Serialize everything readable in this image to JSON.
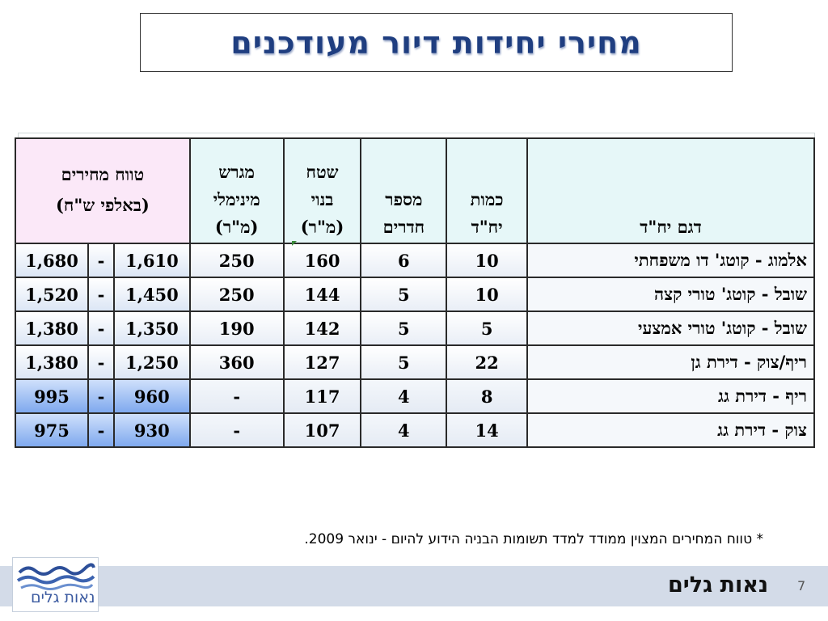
{
  "title": "מחירי יחידות דיור מעודכנים",
  "table": {
    "headers": {
      "model": "דגם יח\"ד",
      "quantity": [
        "כמות",
        "יח\"ד"
      ],
      "rooms": [
        "מספר",
        "חדרים"
      ],
      "built_area": [
        "שטח",
        "בנוי",
        "(מ\"ר)"
      ],
      "min_plot": [
        "מגרש",
        "מינימלי",
        "(מ\"ר)"
      ],
      "price_range": [
        "טווח מחירים",
        "(באלפי ש\"ח)"
      ]
    },
    "rows": [
      {
        "model": "אלמוג - קוטג' דו משפחתי",
        "quantity": "10",
        "rooms": "6",
        "built_area": "160",
        "min_plot": "250",
        "price_low": "1,610",
        "dash": "-",
        "price_high": "1,680"
      },
      {
        "model": "שובל - קוטג' טורי קצה",
        "quantity": "10",
        "rooms": "5",
        "built_area": "144",
        "min_plot": "250",
        "price_low": "1,450",
        "dash": "-",
        "price_high": "1,520"
      },
      {
        "model": "שובל - קוטג' טורי אמצעי",
        "quantity": "5",
        "rooms": "5",
        "built_area": "142",
        "min_plot": "190",
        "price_low": "1,350",
        "dash": "-",
        "price_high": "1,380"
      },
      {
        "model": "ריף/צוק - דירת גן",
        "quantity": "22",
        "rooms": "5",
        "built_area": "127",
        "min_plot": "360",
        "price_low": "1,250",
        "dash": "-",
        "price_high": "1,380"
      },
      {
        "model": "ריף - דירת גג",
        "quantity": "8",
        "rooms": "4",
        "built_area": "117",
        "min_plot": "-",
        "price_low": "960",
        "dash": "-",
        "price_high": "995"
      },
      {
        "model": "צוק - דירת גג",
        "quantity": "14",
        "rooms": "4",
        "built_area": "107",
        "min_plot": "-",
        "price_low": "930",
        "dash": "-",
        "price_high": "975"
      }
    ]
  },
  "footnote": "* טווח המחירים המצוין ממודד למדד תשומות הבניה הידוע להיום  - ינואר 2009.",
  "footer": {
    "brand": "נאות גלים",
    "page_number": "7",
    "logo_text": "נאות גלים"
  },
  "colors": {
    "title": "#1f3e80",
    "header_bg": "#e6f7f8",
    "range_header_bg": "#fbe8f8",
    "footer_bar": "#d3dbe8",
    "blue_range_cells": "#7fa9ee"
  }
}
